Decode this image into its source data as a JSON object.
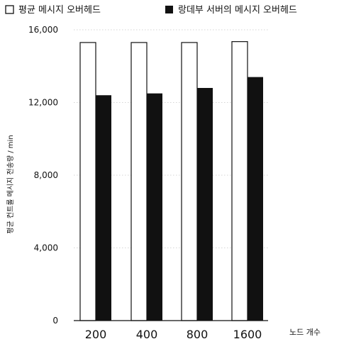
{
  "chart_data": {
    "type": "bar",
    "categories": [
      "200",
      "400",
      "800",
      "1600"
    ],
    "series": [
      {
        "name": "평균 메시지 오버헤드",
        "values": [
          15300,
          15300,
          15300,
          15350
        ],
        "color": "#ffffff"
      },
      {
        "name": "랑데부 서버의 메시지 오버헤드",
        "values": [
          12400,
          12500,
          12800,
          13400
        ],
        "color": "#111111"
      }
    ],
    "title": "",
    "xlabel": "노드 개수",
    "ylabel": "평균 컨트롤 메시지 전송량 / min",
    "ylim": [
      0,
      16000
    ],
    "yticks": [
      "0",
      "4,000",
      "8,000",
      "12,000",
      "16,000"
    ],
    "grid": true,
    "legend_position": "top"
  }
}
